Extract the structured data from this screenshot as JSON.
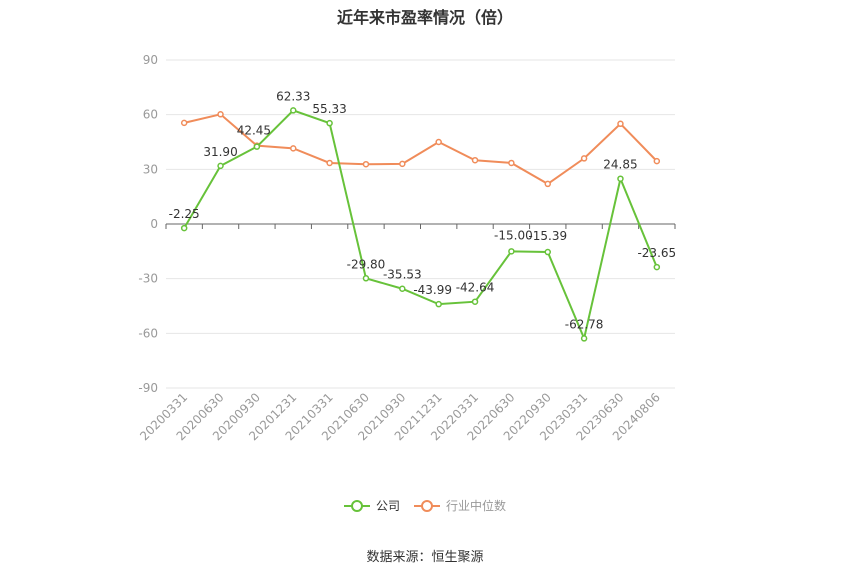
{
  "title": "近年来市盈率情况（倍）",
  "source": "数据来源：恒生聚源",
  "colors": {
    "company": "#67c23a",
    "industry": "#f08c5a",
    "grid": "#e6e6e6",
    "axis": "#999999",
    "text": "#333333"
  },
  "chart_data": {
    "type": "line",
    "title": "近年来市盈率情况（倍）",
    "xlabel": "",
    "ylabel": "",
    "ylim": [
      -90,
      90
    ],
    "yticks": [
      90,
      60,
      30,
      0,
      -30,
      -60,
      -90
    ],
    "grid": true,
    "legend_position": "bottom",
    "categories": [
      "20200331",
      "20200630",
      "20200930",
      "20201231",
      "20210331",
      "20210630",
      "20210930",
      "20211231",
      "20220331",
      "20220630",
      "20220930",
      "20230331",
      "20230630",
      "20240806"
    ],
    "series": [
      {
        "name": "公司",
        "values": [
          -2.25,
          31.9,
          42.45,
          62.33,
          55.33,
          -29.8,
          -35.53,
          -43.99,
          -42.64,
          -15.0,
          -15.39,
          -62.78,
          24.85,
          -23.65
        ],
        "labels": [
          "-2.25",
          "31.90",
          "42.45",
          "62.33",
          "55.33",
          "-29.80",
          "-35.53",
          "-43.99",
          "-42.64",
          "-15.00",
          "-15.39",
          "-62.78",
          "24.85",
          "-23.65"
        ]
      },
      {
        "name": "行业中位数",
        "values": [
          55.5,
          60.2,
          43.0,
          41.5,
          33.5,
          32.8,
          33.0,
          45.0,
          35.0,
          33.5,
          22.0,
          36.0,
          55.0,
          34.5
        ]
      }
    ]
  }
}
